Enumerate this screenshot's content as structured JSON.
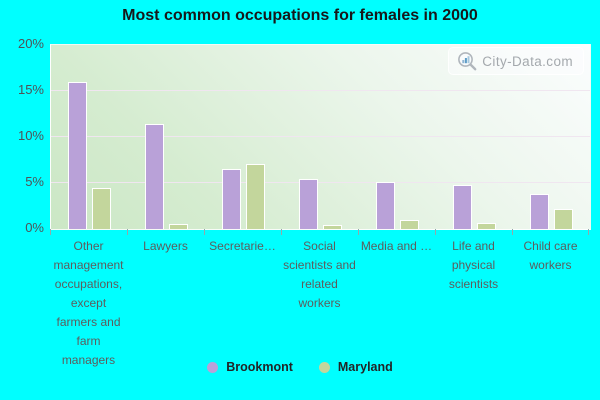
{
  "title": "Most common occupations for females in 2000",
  "watermark": {
    "text": "City-Data.com",
    "icon": "magnifier-bar-chart-icon"
  },
  "colors": {
    "canvas_background": "#00ffff",
    "brookmont": "#b9a1d8",
    "maryland": "#c3d69c",
    "gridline": "#f0e6f0",
    "axis_text": "#4f5357",
    "x_label_text": "#5d5d5d",
    "title_text": "#17181a",
    "legend_text": "#222426"
  },
  "chart_data": {
    "type": "bar",
    "title": "Most common occupations for females in 2000",
    "categories": [
      "Other management occupations, except farmers and farm managers",
      "Lawyers",
      "Secretarie…",
      "Social scientists and related workers",
      "Media and …",
      "Life and physical scientists",
      "Child care workers"
    ],
    "series": [
      {
        "name": "Brookmont",
        "color": "#b9a1d8",
        "values": [
          16.0,
          11.4,
          6.5,
          5.4,
          5.1,
          4.8,
          3.8
        ]
      },
      {
        "name": "Maryland",
        "color": "#c3d69c",
        "values": [
          4.5,
          0.6,
          7.1,
          0.4,
          1.0,
          0.7,
          2.2
        ]
      }
    ],
    "xlabel": "",
    "ylabel": "",
    "ylim": [
      0,
      20
    ],
    "yticks": [
      0,
      5,
      10,
      15,
      20
    ],
    "ytick_labels": [
      "0%",
      "5%",
      "10%",
      "15%",
      "20%"
    ],
    "grid": true,
    "legend_position": "bottom"
  }
}
